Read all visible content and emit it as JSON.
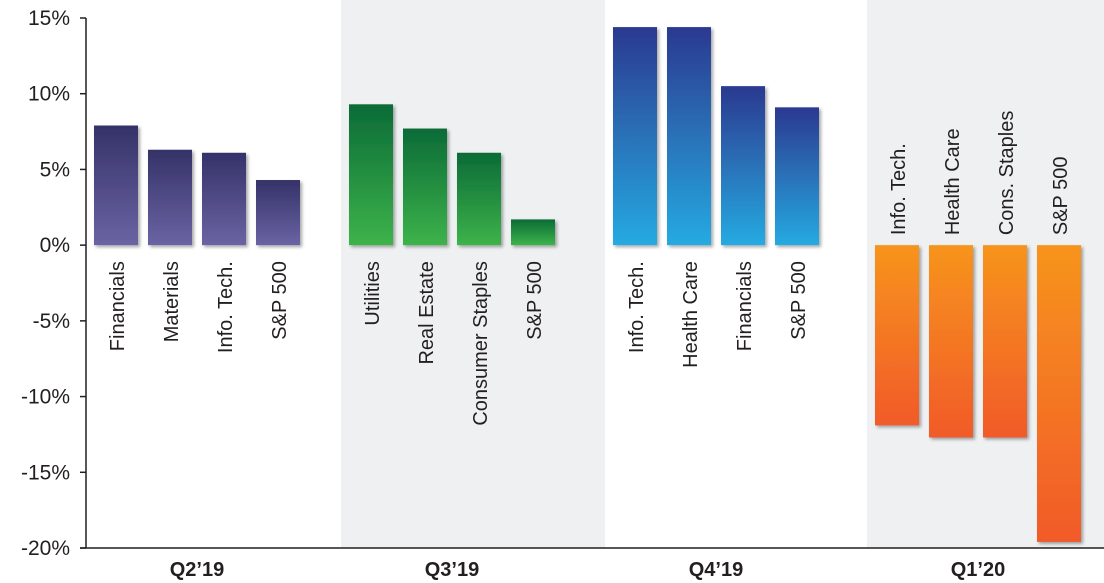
{
  "chart_data": {
    "type": "bar",
    "title": "",
    "xlabel": "",
    "ylabel": "",
    "ylim": [
      -20,
      15
    ],
    "yticks": [
      15,
      10,
      5,
      0,
      -5,
      -10,
      -15,
      -20
    ],
    "ytick_labels": [
      "15%",
      "10%",
      "5%",
      "0%",
      "-5%",
      "-10%",
      "-15%",
      "-20%"
    ],
    "grid": false,
    "groups": [
      {
        "label": "Q2’19",
        "shaded": false,
        "color_top": "#353268",
        "color_bottom": "#6a64a4",
        "bars": [
          {
            "category": "Financials",
            "value": 7.9
          },
          {
            "category": "Materials",
            "value": 6.3
          },
          {
            "category": "Info. Tech.",
            "value": 6.1
          },
          {
            "category": "S&P 500",
            "value": 4.3
          }
        ]
      },
      {
        "label": "Q3’19",
        "shaded": true,
        "color_top": "#0b6b37",
        "color_bottom": "#3db34a",
        "bars": [
          {
            "category": "Utilities",
            "value": 9.3
          },
          {
            "category": "Real Estate",
            "value": 7.7
          },
          {
            "category": "Consumer Staples",
            "value": 6.1
          },
          {
            "category": "S&P 500",
            "value": 1.7
          }
        ]
      },
      {
        "label": "Q4’19",
        "shaded": false,
        "color_top": "#2b3990",
        "color_bottom": "#27aae1",
        "bars": [
          {
            "category": "Info. Tech.",
            "value": 14.4
          },
          {
            "category": "Health Care",
            "value": 14.4
          },
          {
            "category": "Financials",
            "value": 10.5
          },
          {
            "category": "S&P 500",
            "value": 9.1
          }
        ]
      },
      {
        "label": "Q1’20",
        "shaded": true,
        "color_top": "#f7941d",
        "color_bottom": "#f15a29",
        "bars": [
          {
            "category": "Info. Tech.",
            "value": -11.9
          },
          {
            "category": "Health Care",
            "value": -12.7
          },
          {
            "category": "Cons. Staples",
            "value": -12.7
          },
          {
            "category": "S&P 500",
            "value": -19.6
          }
        ]
      }
    ],
    "shade_color": "#eef0f2"
  }
}
